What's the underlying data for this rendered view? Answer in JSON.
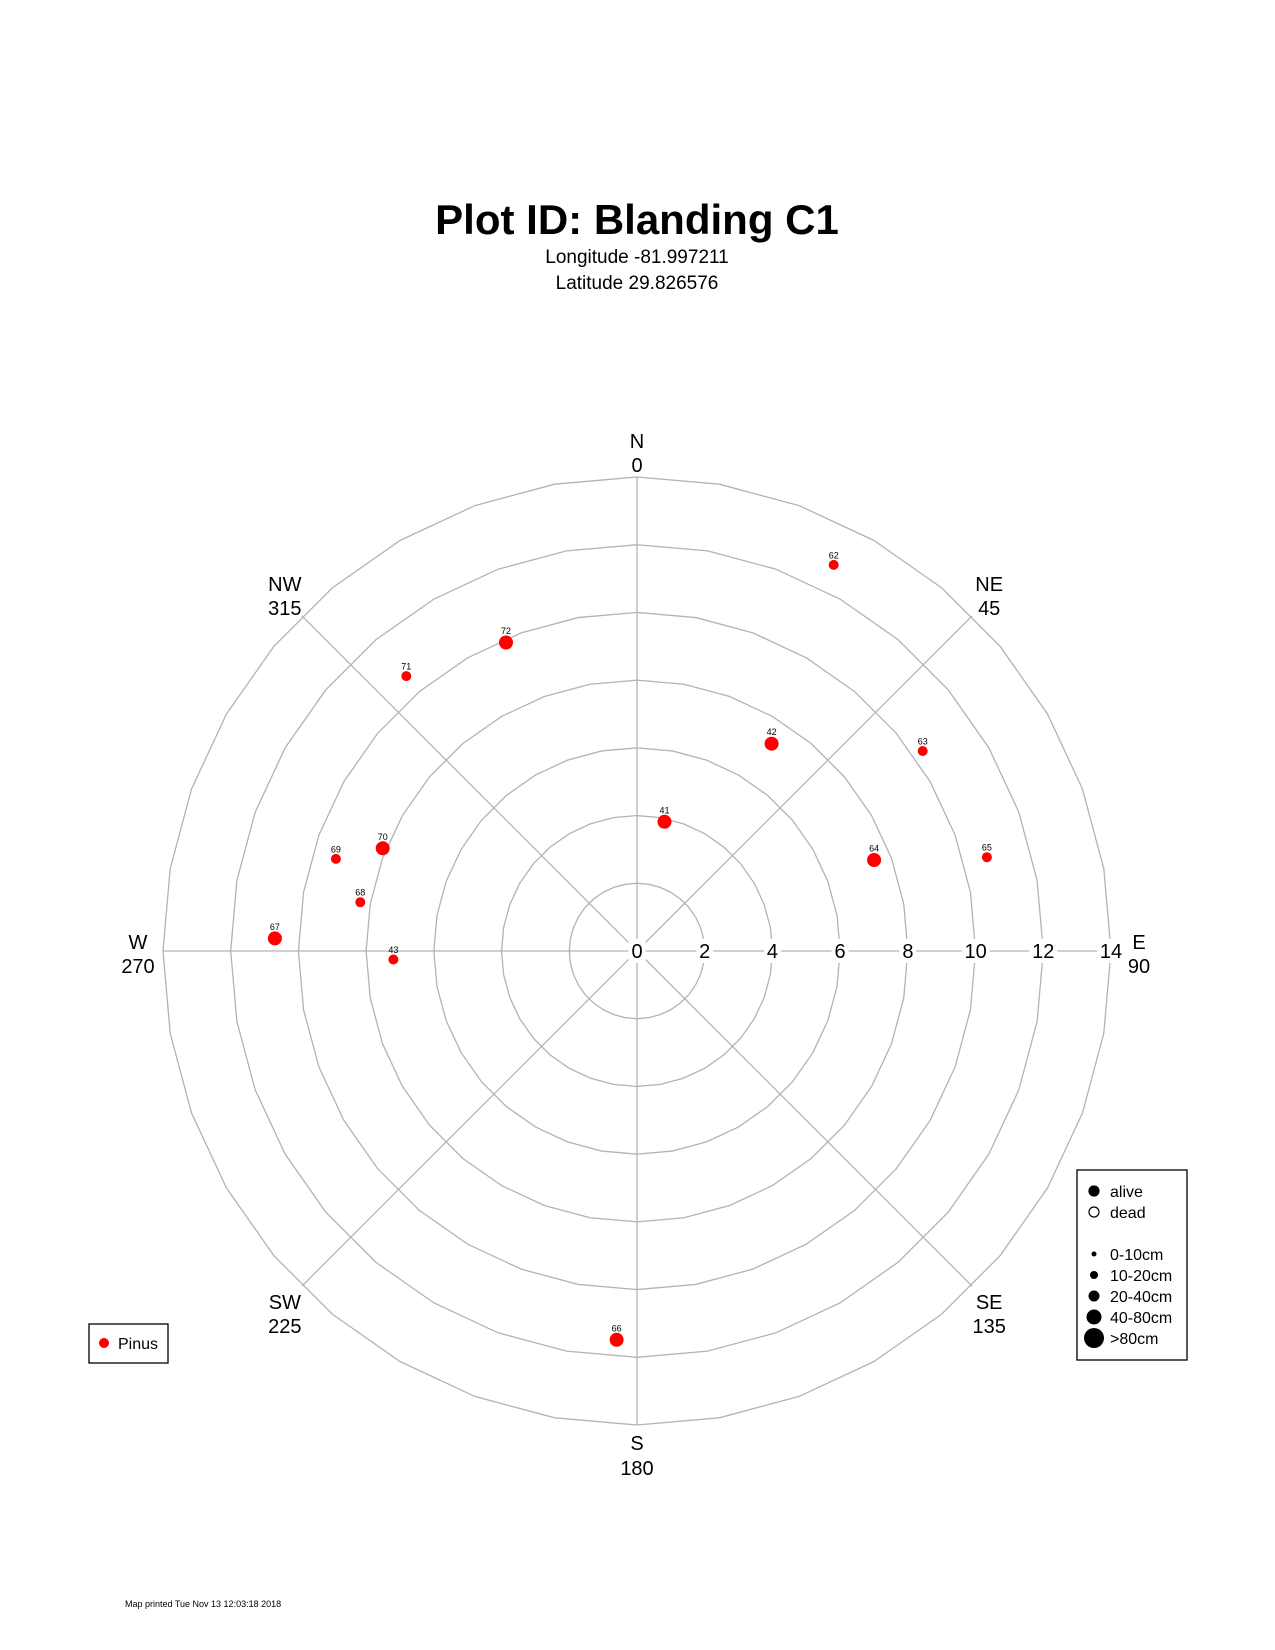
{
  "header": {
    "title": "Plot ID:  Blanding C1",
    "longitude": "Longitude -81.997211",
    "latitude": "Latitude 29.826576"
  },
  "footer": {
    "printed": "Map printed Tue Nov 13 12:03:18 2018"
  },
  "colors": {
    "tree": "#ff0000",
    "grid": "#b3b3b3",
    "text": "#000000"
  },
  "chart_data": {
    "type": "scatter",
    "coordinate_system": "polar",
    "radial_ticks": [
      "0",
      "2",
      "4",
      "6",
      "8",
      "10",
      "12",
      "14"
    ],
    "radial_range": [
      0,
      14
    ],
    "rings": [
      2,
      4,
      6,
      8,
      10,
      12,
      14
    ],
    "directions": [
      {
        "name": "N",
        "azimuth": "0",
        "deg": 0
      },
      {
        "name": "NE",
        "azimuth": "45",
        "deg": 45
      },
      {
        "name": "E",
        "azimuth": "90",
        "deg": 90
      },
      {
        "name": "SE",
        "azimuth": "135",
        "deg": 135
      },
      {
        "name": "S",
        "azimuth": "180",
        "deg": 180
      },
      {
        "name": "SW",
        "azimuth": "225",
        "deg": 225
      },
      {
        "name": "W",
        "azimuth": "270",
        "deg": 270
      },
      {
        "name": "NW",
        "azimuth": "315",
        "deg": 315
      }
    ],
    "points": [
      {
        "id": "41",
        "azimuth": 12,
        "distance": 3.9,
        "size_class": "20-40cm",
        "status": "alive",
        "species": "Pinus"
      },
      {
        "id": "42",
        "azimuth": 33,
        "distance": 7.3,
        "size_class": "20-40cm",
        "status": "alive",
        "species": "Pinus"
      },
      {
        "id": "62",
        "azimuth": 27,
        "distance": 12.8,
        "size_class": "10-20cm",
        "status": "alive",
        "species": "Pinus"
      },
      {
        "id": "63",
        "azimuth": 55,
        "distance": 10.3,
        "size_class": "10-20cm",
        "status": "alive",
        "species": "Pinus"
      },
      {
        "id": "64",
        "azimuth": 69,
        "distance": 7.5,
        "size_class": "20-40cm",
        "status": "alive",
        "species": "Pinus"
      },
      {
        "id": "65",
        "azimuth": 75,
        "distance": 10.7,
        "size_class": "10-20cm",
        "status": "alive",
        "species": "Pinus"
      },
      {
        "id": "66",
        "azimuth": 183,
        "distance": 11.5,
        "size_class": "20-40cm",
        "status": "alive",
        "species": "Pinus"
      },
      {
        "id": "43",
        "azimuth": 268,
        "distance": 7.2,
        "size_class": "10-20cm",
        "status": "alive",
        "species": "Pinus"
      },
      {
        "id": "67",
        "azimuth": 272,
        "distance": 10.7,
        "size_class": "20-40cm",
        "status": "alive",
        "species": "Pinus"
      },
      {
        "id": "68",
        "azimuth": 280,
        "distance": 8.3,
        "size_class": "10-20cm",
        "status": "alive",
        "species": "Pinus"
      },
      {
        "id": "69",
        "azimuth": 287,
        "distance": 9.3,
        "size_class": "10-20cm",
        "status": "alive",
        "species": "Pinus"
      },
      {
        "id": "70",
        "azimuth": 292,
        "distance": 8.1,
        "size_class": "20-40cm",
        "status": "alive",
        "species": "Pinus"
      },
      {
        "id": "71",
        "azimuth": 320,
        "distance": 10.6,
        "size_class": "10-20cm",
        "status": "alive",
        "species": "Pinus"
      },
      {
        "id": "72",
        "azimuth": 337,
        "distance": 9.9,
        "size_class": "20-40cm",
        "status": "alive",
        "species": "Pinus"
      }
    ],
    "legend_status": [
      {
        "label": "alive",
        "filled": true
      },
      {
        "label": "dead",
        "filled": false
      }
    ],
    "legend_sizes": [
      {
        "label": "0-10cm",
        "level": 1
      },
      {
        "label": "10-20cm",
        "level": 2
      },
      {
        "label": "20-40cm",
        "level": 3
      },
      {
        "label": "40-80cm",
        "level": 4
      },
      {
        "label": ">80cm",
        "level": 5
      }
    ],
    "legend_species": [
      {
        "label": "Pinus",
        "color": "#ff0000"
      }
    ],
    "legend_placement": [
      "bottom-right",
      "bottom-left"
    ]
  }
}
